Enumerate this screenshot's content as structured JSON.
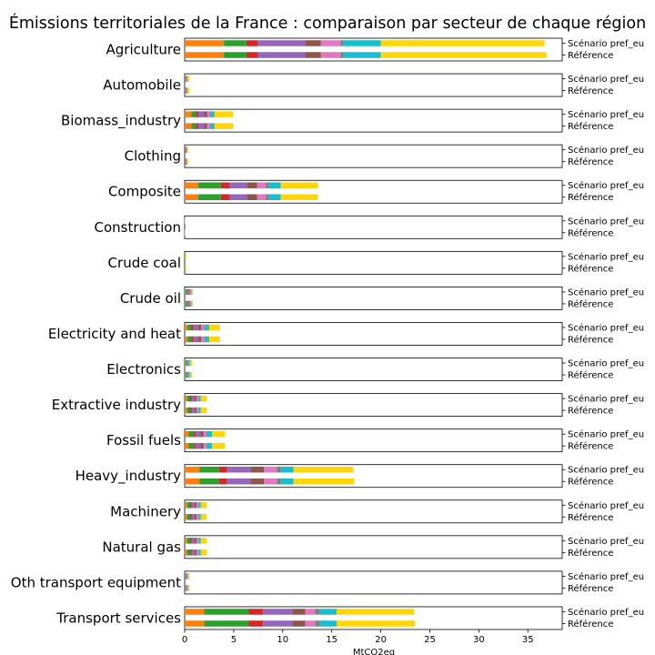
{
  "chart_data": {
    "type": "bar",
    "orientation": "horizontal",
    "stacked": true,
    "title": "Émissions territoriales de la France : comparaison par secteur de chaque région",
    "xlabel": "MtCO2eq",
    "xlim": [
      0,
      38.5
    ],
    "xticks": [
      0,
      5,
      10,
      15,
      20,
      25,
      30,
      35
    ],
    "grid": false,
    "colors": [
      "#ff7f0e",
      "#2ca02c",
      "#d62728",
      "#9467bd",
      "#8c564b",
      "#e377c2",
      "#7f7f7f",
      "#17becf",
      "#ffd60a"
    ],
    "scenarios": [
      "Scénario pref_eu",
      "Référence"
    ],
    "sectors": [
      {
        "name": "Agriculture",
        "segments": [
          [
            4.0,
            2.3,
            1.2,
            4.8,
            1.6,
            2.0,
            0.3,
            3.8,
            16.7
          ],
          [
            4.0,
            2.3,
            1.2,
            4.8,
            1.6,
            2.0,
            0.3,
            3.8,
            16.9
          ]
        ]
      },
      {
        "name": "Automobile",
        "segments": [
          [
            0.05,
            0.05,
            0.02,
            0.06,
            0.03,
            0.03,
            0.01,
            0.05,
            0.2
          ],
          [
            0.05,
            0.05,
            0.02,
            0.06,
            0.03,
            0.03,
            0.01,
            0.05,
            0.2
          ]
        ]
      },
      {
        "name": "Biomass_industry",
        "segments": [
          [
            0.7,
            0.5,
            0.2,
            0.6,
            0.3,
            0.3,
            0.05,
            0.4,
            1.9
          ],
          [
            0.7,
            0.5,
            0.2,
            0.6,
            0.3,
            0.3,
            0.05,
            0.4,
            1.9
          ]
        ]
      },
      {
        "name": "Clothing",
        "segments": [
          [
            0.03,
            0.04,
            0.02,
            0.05,
            0.03,
            0.03,
            0.01,
            0.04,
            0.1
          ],
          [
            0.03,
            0.04,
            0.02,
            0.05,
            0.03,
            0.03,
            0.01,
            0.04,
            0.1
          ]
        ]
      },
      {
        "name": "Composite",
        "segments": [
          [
            1.4,
            2.3,
            0.9,
            1.8,
            1.0,
            0.9,
            0.3,
            1.2,
            3.8
          ],
          [
            1.4,
            2.3,
            0.9,
            1.8,
            1.0,
            0.9,
            0.3,
            1.2,
            3.8
          ]
        ]
      },
      {
        "name": "Construction",
        "segments": [
          [
            0.0,
            0.0,
            0.0,
            0.0,
            0.0,
            0.0,
            0.0,
            0.0,
            0.05
          ],
          [
            0.0,
            0.0,
            0.0,
            0.0,
            0.0,
            0.0,
            0.0,
            0.0,
            0.05
          ]
        ]
      },
      {
        "name": "Crude coal",
        "segments": [
          [
            0.01,
            0.01,
            0.0,
            0.01,
            0.0,
            0.01,
            0.0,
            0.01,
            0.1
          ],
          [
            0.01,
            0.01,
            0.0,
            0.01,
            0.0,
            0.01,
            0.0,
            0.01,
            0.1
          ]
        ]
      },
      {
        "name": "Crude oil",
        "segments": [
          [
            0.1,
            0.15,
            0.05,
            0.12,
            0.08,
            0.07,
            0.02,
            0.1,
            0.15
          ],
          [
            0.1,
            0.15,
            0.05,
            0.12,
            0.08,
            0.07,
            0.02,
            0.1,
            0.15
          ]
        ]
      },
      {
        "name": "Electricity and heat",
        "segments": [
          [
            0.3,
            0.4,
            0.2,
            0.5,
            0.3,
            0.3,
            0.1,
            0.4,
            1.1
          ],
          [
            0.3,
            0.4,
            0.2,
            0.5,
            0.3,
            0.3,
            0.1,
            0.4,
            1.1
          ]
        ]
      },
      {
        "name": "Electronics",
        "segments": [
          [
            0.1,
            0.1,
            0.05,
            0.1,
            0.05,
            0.05,
            0.02,
            0.08,
            0.2
          ],
          [
            0.1,
            0.1,
            0.05,
            0.1,
            0.05,
            0.05,
            0.02,
            0.08,
            0.2
          ]
        ]
      },
      {
        "name": "Extractive industry",
        "segments": [
          [
            0.25,
            0.3,
            0.15,
            0.3,
            0.2,
            0.2,
            0.05,
            0.2,
            0.6
          ],
          [
            0.25,
            0.3,
            0.15,
            0.3,
            0.2,
            0.2,
            0.05,
            0.2,
            0.6
          ]
        ]
      },
      {
        "name": "Fossil fuels",
        "segments": [
          [
            0.4,
            0.5,
            0.2,
            0.5,
            0.3,
            0.3,
            0.1,
            0.5,
            1.3
          ],
          [
            0.4,
            0.5,
            0.2,
            0.5,
            0.3,
            0.3,
            0.1,
            0.5,
            1.3
          ]
        ]
      },
      {
        "name": "Heavy_industry",
        "segments": [
          [
            1.5,
            2.0,
            0.8,
            2.4,
            1.4,
            1.3,
            0.4,
            1.3,
            6.1
          ],
          [
            1.5,
            2.0,
            0.8,
            2.4,
            1.4,
            1.3,
            0.4,
            1.3,
            6.2
          ]
        ]
      },
      {
        "name": "Machinery",
        "segments": [
          [
            0.25,
            0.3,
            0.15,
            0.3,
            0.2,
            0.2,
            0.05,
            0.2,
            0.6
          ],
          [
            0.25,
            0.3,
            0.15,
            0.3,
            0.2,
            0.2,
            0.05,
            0.2,
            0.6
          ]
        ]
      },
      {
        "name": "Natural gas",
        "segments": [
          [
            0.25,
            0.3,
            0.15,
            0.3,
            0.2,
            0.2,
            0.05,
            0.2,
            0.6
          ],
          [
            0.25,
            0.3,
            0.15,
            0.3,
            0.2,
            0.2,
            0.05,
            0.2,
            0.6
          ]
        ]
      },
      {
        "name": "Oth transport equipment",
        "segments": [
          [
            0.05,
            0.05,
            0.03,
            0.08,
            0.04,
            0.04,
            0.01,
            0.05,
            0.15
          ],
          [
            0.05,
            0.05,
            0.03,
            0.08,
            0.04,
            0.04,
            0.01,
            0.05,
            0.15
          ]
        ]
      },
      {
        "name": "Transport services",
        "segments": [
          [
            2.0,
            4.5,
            1.5,
            3.0,
            1.3,
            1.0,
            0.5,
            1.7,
            7.9
          ],
          [
            2.0,
            4.5,
            1.5,
            3.0,
            1.3,
            1.0,
            0.5,
            1.7,
            8.0
          ]
        ]
      }
    ]
  }
}
